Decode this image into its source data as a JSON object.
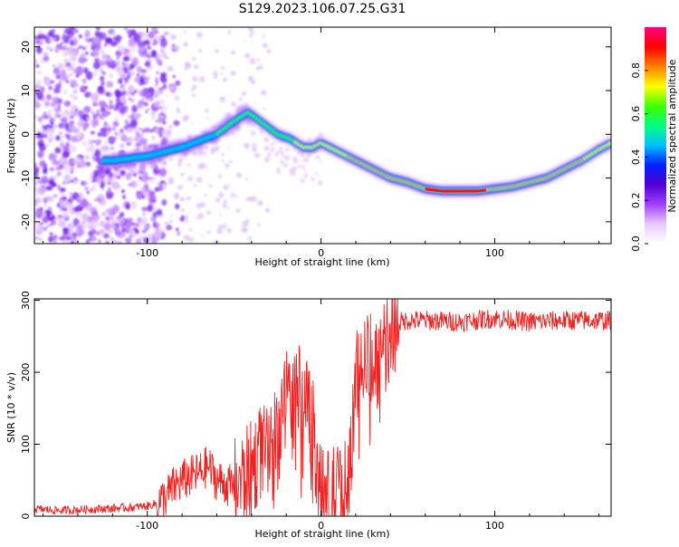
{
  "title": "S129.2023.106.07.25.G31",
  "chart_data": [
    {
      "type": "heatmap",
      "xlabel": "Height of straight line (km)",
      "ylabel": "Frequency (Hz)",
      "xlim": [
        -165,
        167
      ],
      "ylim": [
        -25,
        24.5
      ],
      "x_ticks": [
        -100,
        0,
        100
      ],
      "x_tick_labels": [
        "-100",
        "0",
        "100"
      ],
      "y_ticks": [
        -20,
        -10,
        0,
        10,
        20
      ],
      "y_tick_labels": [
        "-20",
        "-10",
        "0",
        "10",
        "20"
      ],
      "colorbar": {
        "label": "Normalized spectral amplitude",
        "range": [
          0,
          1
        ],
        "ticks": [
          0.0,
          0.2,
          0.4,
          0.6,
          0.8
        ],
        "tick_labels": [
          "0.0",
          "0.2",
          "0.4",
          "0.6",
          "0.8"
        ],
        "colors": [
          "#ffffff",
          "#e8c8ff",
          "#a040ff",
          "#5000d0",
          "#0020ff",
          "#00c0ff",
          "#00ff80",
          "#40ff00",
          "#ffff00",
          "#ff8000",
          "#ff0000",
          "#ff0080"
        ]
      },
      "trace": {
        "name": "",
        "x": [
          -120,
          -100,
          -80,
          -60,
          -50,
          -42,
          -35,
          -25,
          -18,
          -10,
          -5,
          0,
          10,
          20,
          30,
          40,
          50,
          60,
          70,
          80,
          90,
          100,
          110,
          120,
          130,
          140,
          150,
          160,
          167
        ],
        "y": [
          -6,
          -5,
          -3,
          0,
          3,
          5,
          3,
          0,
          -1,
          -3,
          -3,
          -2,
          -4,
          -6,
          -8,
          -10,
          -11,
          -12.5,
          -13,
          -13,
          -13,
          -12.5,
          -12,
          -11,
          -10,
          -8,
          -6,
          -3.5,
          -2
        ]
      }
    },
    {
      "type": "line",
      "xlabel": "Height of straight line (km)",
      "ylabel": "SNR (10 * v/v)",
      "xlim": [
        -165,
        167
      ],
      "ylim": [
        0,
        302
      ],
      "x_ticks": [
        -100,
        0,
        100
      ],
      "x_tick_labels": [
        "-100",
        "0",
        "100"
      ],
      "y_ticks": [
        0,
        100,
        200,
        300
      ],
      "y_tick_labels": [
        "0",
        "100",
        "200",
        "300"
      ],
      "color": "#ee2222",
      "series": [
        {
          "name": "",
          "x": [
            -165,
            -150,
            -130,
            -110,
            -100,
            -95,
            -90,
            -85,
            -80,
            -75,
            -70,
            -65,
            -60,
            -55,
            -50,
            -45,
            -40,
            -35,
            -30,
            -25,
            -22,
            -20,
            -15,
            -10,
            -5,
            0,
            5,
            10,
            15,
            18,
            20,
            25,
            30,
            35,
            38,
            40,
            45,
            50,
            60,
            80,
            100,
            120,
            140,
            167
          ],
          "y": [
            10,
            8,
            10,
            12,
            14,
            18,
            25,
            40,
            50,
            55,
            60,
            70,
            50,
            45,
            40,
            50,
            65,
            90,
            80,
            100,
            150,
            170,
            160,
            180,
            130,
            30,
            25,
            35,
            40,
            120,
            200,
            210,
            220,
            215,
            240,
            265,
            270,
            272,
            272,
            270,
            275,
            270,
            272,
            272
          ]
        }
      ]
    }
  ]
}
